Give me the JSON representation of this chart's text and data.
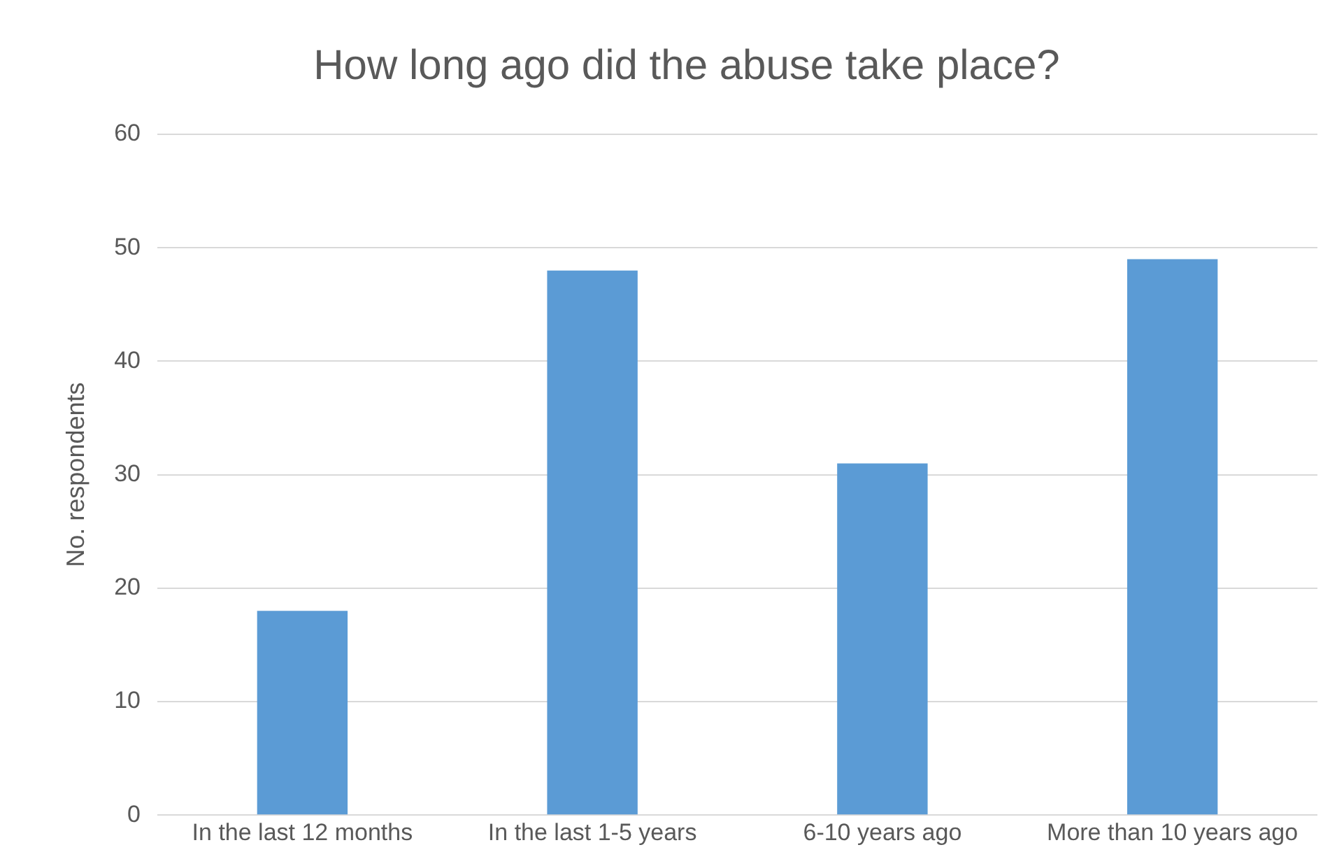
{
  "chart_data": {
    "type": "bar",
    "title": "How long ago did the abuse take place?",
    "ylabel": "No. respondents",
    "categories": [
      "In the last 12 months",
      "In the last 1-5 years",
      "6-10 years ago",
      "More than 10 years ago"
    ],
    "values": [
      18,
      48,
      31,
      49
    ],
    "color": "#5b9bd5",
    "ylim": [
      0,
      60
    ],
    "yticks": [
      0,
      10,
      20,
      30,
      40,
      50,
      60
    ],
    "grid": "y"
  }
}
